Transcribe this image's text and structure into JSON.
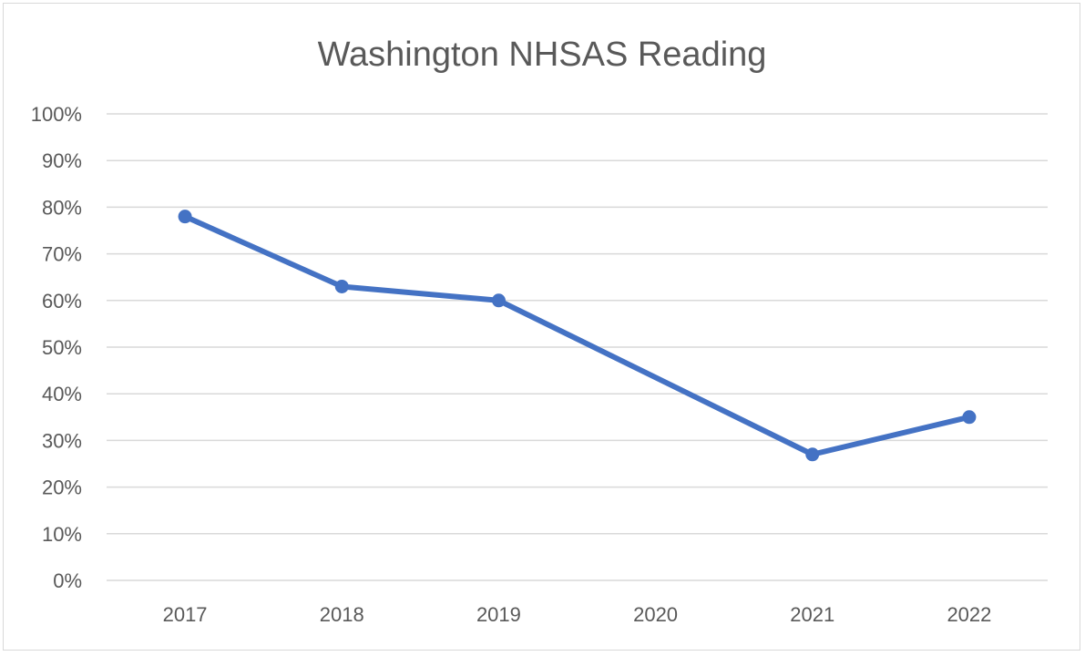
{
  "chart_data": {
    "type": "line",
    "title": "Washington NHSAS Reading",
    "categories": [
      "2017",
      "2018",
      "2019",
      "2020",
      "2021",
      "2022"
    ],
    "series": [
      {
        "values": [
          78,
          63,
          60,
          null,
          27,
          35
        ],
        "color": "#4472c4"
      }
    ],
    "y_ticks": [
      "0%",
      "10%",
      "20%",
      "30%",
      "40%",
      "50%",
      "60%",
      "70%",
      "80%",
      "90%",
      "100%"
    ],
    "ylim": [
      0,
      100
    ],
    "xlabel": "",
    "ylabel": "",
    "grid": true,
    "legend": "none"
  }
}
